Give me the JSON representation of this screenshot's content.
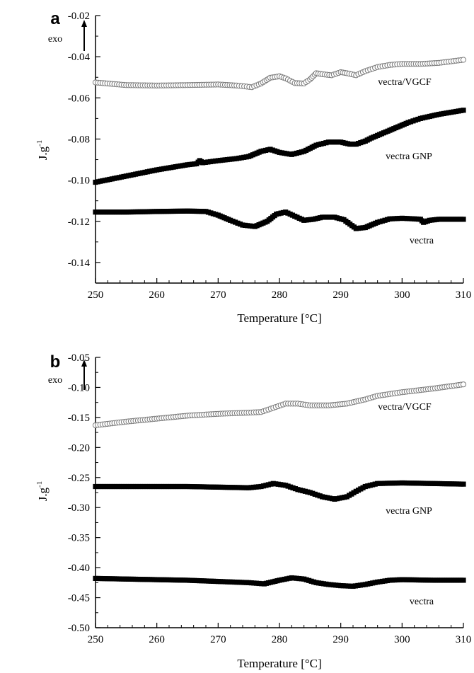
{
  "chart_data": [
    {
      "type": "scatter",
      "panel": "a",
      "annotation": "exo",
      "xlabel": "Temperature [°C]",
      "ylabel": "J.g",
      "ylabel_sup": "-1",
      "xlim": [
        250,
        310
      ],
      "ylim": [
        -0.15,
        -0.02
      ],
      "xticks": [
        "250",
        "260",
        "270",
        "280",
        "290",
        "300",
        "310"
      ],
      "yticks": [
        "-0.02",
        "-0.04",
        "-0.06",
        "-0.08",
        "-0.10",
        "-0.12",
        "-0.14"
      ],
      "grid": false,
      "series": [
        {
          "name": "vectra/VGCF",
          "marker": "open-circle",
          "points": [
            [
              250,
              -0.0525
            ],
            [
              255,
              -0.0538
            ],
            [
              260,
              -0.054
            ],
            [
              265,
              -0.0538
            ],
            [
              270,
              -0.0535
            ],
            [
              273,
              -0.054
            ],
            [
              275.5,
              -0.0548
            ],
            [
              277,
              -0.053
            ],
            [
              278.5,
              -0.0502
            ],
            [
              280,
              -0.0495
            ],
            [
              281,
              -0.0505
            ],
            [
              282.5,
              -0.0528
            ],
            [
              284,
              -0.053
            ],
            [
              285,
              -0.051
            ],
            [
              286,
              -0.048
            ],
            [
              287,
              -0.0485
            ],
            [
              288.5,
              -0.049
            ],
            [
              290,
              -0.0475
            ],
            [
              291,
              -0.048
            ],
            [
              292.5,
              -0.049
            ],
            [
              294,
              -0.047
            ],
            [
              296,
              -0.045
            ],
            [
              298,
              -0.044
            ],
            [
              300,
              -0.0435
            ],
            [
              303,
              -0.0435
            ],
            [
              306,
              -0.043
            ],
            [
              310,
              -0.0415
            ]
          ]
        },
        {
          "name": "vectra GNP",
          "marker": "filled-square",
          "points": [
            [
              250,
              -0.101
            ],
            [
              255,
              -0.098
            ],
            [
              260,
              -0.095
            ],
            [
              265,
              -0.0925
            ],
            [
              266.5,
              -0.092
            ],
            [
              267,
              -0.0905
            ],
            [
              267.5,
              -0.0915
            ],
            [
              270,
              -0.0905
            ],
            [
              273,
              -0.0895
            ],
            [
              275,
              -0.0885
            ],
            [
              277,
              -0.086
            ],
            [
              278.5,
              -0.085
            ],
            [
              280,
              -0.0865
            ],
            [
              282,
              -0.0875
            ],
            [
              284,
              -0.086
            ],
            [
              286,
              -0.083
            ],
            [
              288,
              -0.0815
            ],
            [
              290,
              -0.0815
            ],
            [
              291.5,
              -0.0825
            ],
            [
              292.5,
              -0.0825
            ],
            [
              294,
              -0.081
            ],
            [
              295,
              -0.0795
            ],
            [
              297,
              -0.077
            ],
            [
              299,
              -0.0745
            ],
            [
              301,
              -0.072
            ],
            [
              303,
              -0.07
            ],
            [
              306,
              -0.068
            ],
            [
              310,
              -0.066
            ]
          ]
        },
        {
          "name": "vectra",
          "marker": "filled-square",
          "points": [
            [
              250,
              -0.1155
            ],
            [
              255,
              -0.1155
            ],
            [
              260,
              -0.1152
            ],
            [
              265,
              -0.115
            ],
            [
              268,
              -0.1152
            ],
            [
              270,
              -0.117
            ],
            [
              272,
              -0.1195
            ],
            [
              274,
              -0.1218
            ],
            [
              276,
              -0.1225
            ],
            [
              278,
              -0.12
            ],
            [
              279.5,
              -0.1165
            ],
            [
              281,
              -0.1155
            ],
            [
              282.5,
              -0.1175
            ],
            [
              284,
              -0.1195
            ],
            [
              285.5,
              -0.119
            ],
            [
              287,
              -0.118
            ],
            [
              289,
              -0.118
            ],
            [
              290.5,
              -0.1192
            ],
            [
              292.5,
              -0.1235
            ],
            [
              294,
              -0.123
            ],
            [
              296,
              -0.1205
            ],
            [
              298,
              -0.1188
            ],
            [
              300,
              -0.1185
            ],
            [
              302,
              -0.1188
            ],
            [
              303,
              -0.119
            ],
            [
              303.5,
              -0.1205
            ],
            [
              304.5,
              -0.1195
            ],
            [
              306,
              -0.119
            ],
            [
              310,
              -0.119
            ]
          ]
        }
      ]
    },
    {
      "type": "scatter",
      "panel": "b",
      "annotation": "exo",
      "xlabel": "Temperature [°C]",
      "ylabel": "J.g",
      "ylabel_sup": "-1",
      "xlim": [
        250,
        310
      ],
      "ylim": [
        -0.5,
        -0.05
      ],
      "xticks": [
        "250",
        "260",
        "270",
        "280",
        "290",
        "300",
        "310"
      ],
      "yticks": [
        "-0.05",
        "-0.10",
        "-0.15",
        "-0.20",
        "-0.25",
        "-0.30",
        "-0.35",
        "-0.40",
        "-0.45",
        "-0.50"
      ],
      "grid": false,
      "series": [
        {
          "name": "vectra/VGCF",
          "marker": "open-circle",
          "points": [
            [
              250,
              -0.163
            ],
            [
              255,
              -0.157
            ],
            [
              260,
              -0.152
            ],
            [
              265,
              -0.147
            ],
            [
              270,
              -0.144
            ],
            [
              275,
              -0.142
            ],
            [
              277,
              -0.141
            ],
            [
              279,
              -0.134
            ],
            [
              281,
              -0.127
            ],
            [
              283,
              -0.127
            ],
            [
              285,
              -0.13
            ],
            [
              288,
              -0.13
            ],
            [
              291,
              -0.127
            ],
            [
              294,
              -0.12
            ],
            [
              296,
              -0.114
            ],
            [
              300,
              -0.108
            ],
            [
              305,
              -0.102
            ],
            [
              310,
              -0.095
            ]
          ]
        },
        {
          "name": "vectra GNP",
          "marker": "filled-square",
          "points": [
            [
              250,
              -0.265
            ],
            [
              255,
              -0.265
            ],
            [
              260,
              -0.265
            ],
            [
              265,
              -0.265
            ],
            [
              270,
              -0.266
            ],
            [
              275,
              -0.267
            ],
            [
              277,
              -0.265
            ],
            [
              279,
              -0.26
            ],
            [
              281,
              -0.263
            ],
            [
              283,
              -0.27
            ],
            [
              285,
              -0.275
            ],
            [
              287,
              -0.282
            ],
            [
              289,
              -0.286
            ],
            [
              291,
              -0.282
            ],
            [
              292.5,
              -0.273
            ],
            [
              294,
              -0.265
            ],
            [
              296,
              -0.26
            ],
            [
              300,
              -0.259
            ],
            [
              305,
              -0.26
            ],
            [
              310,
              -0.261
            ]
          ]
        },
        {
          "name": "vectra",
          "marker": "filled-square",
          "points": [
            [
              250,
              -0.418
            ],
            [
              255,
              -0.419
            ],
            [
              260,
              -0.42
            ],
            [
              265,
              -0.421
            ],
            [
              270,
              -0.423
            ],
            [
              275,
              -0.425
            ],
            [
              277.5,
              -0.427
            ],
            [
              280,
              -0.421
            ],
            [
              282,
              -0.417
            ],
            [
              284,
              -0.419
            ],
            [
              286,
              -0.425
            ],
            [
              288,
              -0.428
            ],
            [
              290,
              -0.43
            ],
            [
              292,
              -0.431
            ],
            [
              294,
              -0.428
            ],
            [
              296,
              -0.424
            ],
            [
              298,
              -0.421
            ],
            [
              300,
              -0.42
            ],
            [
              305,
              -0.421
            ],
            [
              310,
              -0.421
            ]
          ]
        }
      ]
    }
  ]
}
